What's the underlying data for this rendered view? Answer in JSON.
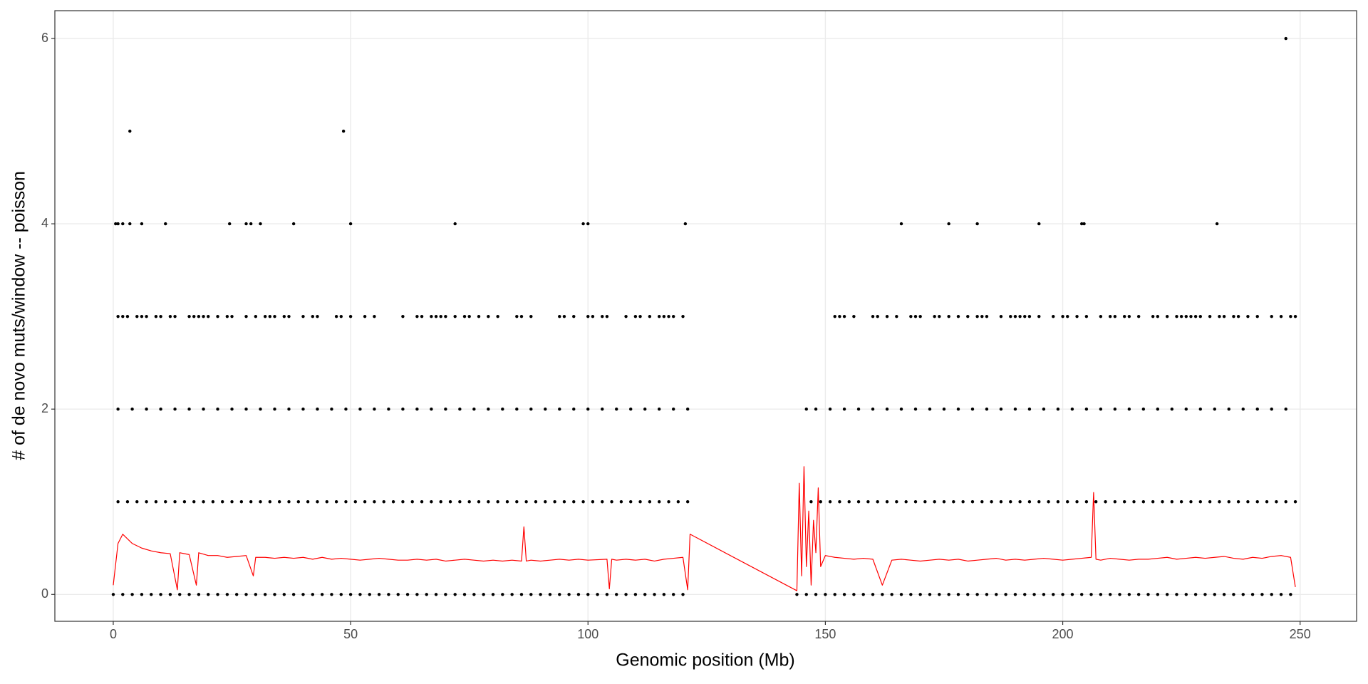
{
  "chart_data": {
    "type": "scatter",
    "xlabel": "Genomic position (Mb)",
    "ylabel": "# of de novo muts/window -- poisson",
    "xlim": [
      -12.3,
      261.9
    ],
    "ylim": [
      -0.29,
      6.3
    ],
    "xticks": [
      0,
      50,
      100,
      150,
      200,
      250
    ],
    "yticks": [
      0,
      2,
      4,
      6
    ],
    "grid": true,
    "series": [
      {
        "type": "scatter",
        "color": "#000000",
        "x": [
          0,
          2,
          4,
          6,
          8,
          10,
          12,
          14,
          16,
          18,
          20,
          22,
          24,
          26,
          28,
          30,
          32,
          34,
          36,
          38,
          40,
          42,
          44,
          46,
          48,
          50,
          52,
          54,
          56,
          58,
          60,
          62,
          64,
          66,
          68,
          70,
          72,
          74,
          76,
          78,
          80,
          82,
          84,
          86,
          88,
          90,
          92,
          94,
          96,
          98,
          100,
          102,
          104,
          106,
          108,
          110,
          112,
          114,
          116,
          118,
          120,
          144,
          146,
          148,
          150,
          152,
          154,
          156,
          158,
          160,
          162,
          164,
          166,
          168,
          170,
          172,
          174,
          176,
          178,
          180,
          182,
          184,
          186,
          188,
          190,
          192,
          194,
          196,
          198,
          200,
          202,
          204,
          206,
          208,
          210,
          212,
          214,
          216,
          218,
          220,
          222,
          224,
          226,
          228,
          230,
          232,
          234,
          236,
          238,
          240,
          242,
          244,
          246,
          248
        ],
        "values": [
          0,
          0,
          0,
          0,
          0,
          0,
          0,
          0,
          0,
          0,
          0,
          0,
          0,
          0,
          0,
          0,
          0,
          0,
          0,
          0,
          0,
          0,
          0,
          0,
          0,
          0,
          0,
          0,
          0,
          0,
          0,
          0,
          0,
          0,
          0,
          0,
          0,
          0,
          0,
          0,
          0,
          0,
          0,
          0,
          0,
          0,
          0,
          0,
          0,
          0,
          0,
          0,
          0,
          0,
          0,
          0,
          0,
          0,
          0,
          0,
          0,
          0,
          0,
          0,
          0,
          0,
          0,
          0,
          0,
          0,
          0,
          0,
          0,
          0,
          0,
          0,
          0,
          0,
          0,
          0,
          0,
          0,
          0,
          0,
          0,
          0,
          0,
          0,
          0,
          0,
          0,
          0,
          0,
          0,
          0,
          0,
          0,
          0,
          0,
          0,
          0,
          0,
          0,
          0,
          0,
          0,
          0,
          0,
          0,
          0,
          0,
          0,
          0,
          0
        ]
      },
      {
        "type": "scatter",
        "color": "#000000",
        "x": [
          1,
          3,
          5,
          7,
          9,
          11,
          13,
          15,
          17,
          19,
          21,
          23,
          25,
          27,
          29,
          31,
          33,
          35,
          37,
          39,
          41,
          43,
          45,
          47,
          49,
          51,
          53,
          55,
          57,
          59,
          61,
          63,
          65,
          67,
          69,
          71,
          73,
          75,
          77,
          79,
          81,
          83,
          85,
          87,
          89,
          91,
          93,
          95,
          97,
          99,
          101,
          103,
          105,
          107,
          109,
          111,
          113,
          115,
          117,
          119,
          121,
          147,
          149,
          151,
          153,
          155,
          157,
          159,
          161,
          163,
          165,
          167,
          169,
          171,
          173,
          175,
          177,
          179,
          181,
          183,
          185,
          187,
          189,
          191,
          193,
          195,
          197,
          199,
          201,
          203,
          205,
          207,
          209,
          211,
          213,
          215,
          217,
          219,
          221,
          223,
          225,
          227,
          229,
          231,
          233,
          235,
          237,
          239,
          241,
          243,
          245,
          247,
          249
        ],
        "values": [
          1,
          1,
          1,
          1,
          1,
          1,
          1,
          1,
          1,
          1,
          1,
          1,
          1,
          1,
          1,
          1,
          1,
          1,
          1,
          1,
          1,
          1,
          1,
          1,
          1,
          1,
          1,
          1,
          1,
          1,
          1,
          1,
          1,
          1,
          1,
          1,
          1,
          1,
          1,
          1,
          1,
          1,
          1,
          1,
          1,
          1,
          1,
          1,
          1,
          1,
          1,
          1,
          1,
          1,
          1,
          1,
          1,
          1,
          1,
          1,
          1,
          1,
          1,
          1,
          1,
          1,
          1,
          1,
          1,
          1,
          1,
          1,
          1,
          1,
          1,
          1,
          1,
          1,
          1,
          1,
          1,
          1,
          1,
          1,
          1,
          1,
          1,
          1,
          1,
          1,
          1,
          1,
          1,
          1,
          1,
          1,
          1,
          1,
          1,
          1,
          1,
          1,
          1,
          1,
          1,
          1,
          1,
          1,
          1,
          1,
          1,
          1,
          1
        ]
      },
      {
        "type": "scatter",
        "color": "#000000",
        "x": [
          1,
          4,
          7,
          10,
          13,
          16,
          19,
          22,
          25,
          28,
          31,
          34,
          37,
          40,
          43,
          46,
          49,
          52,
          55,
          58,
          61,
          64,
          67,
          70,
          73,
          76,
          79,
          82,
          85,
          88,
          91,
          94,
          97,
          100,
          103,
          106,
          109,
          112,
          115,
          118,
          121,
          146,
          148,
          151,
          154,
          157,
          160,
          163,
          166,
          169,
          172,
          175,
          178,
          181,
          184,
          187,
          190,
          193,
          196,
          199,
          202,
          205,
          208,
          211,
          214,
          217,
          220,
          223,
          226,
          229,
          232,
          235,
          238,
          241,
          244,
          247
        ],
        "values": [
          2,
          2,
          2,
          2,
          2,
          2,
          2,
          2,
          2,
          2,
          2,
          2,
          2,
          2,
          2,
          2,
          2,
          2,
          2,
          2,
          2,
          2,
          2,
          2,
          2,
          2,
          2,
          2,
          2,
          2,
          2,
          2,
          2,
          2,
          2,
          2,
          2,
          2,
          2,
          2,
          2,
          2,
          2,
          2,
          2,
          2,
          2,
          2,
          2,
          2,
          2,
          2,
          2,
          2,
          2,
          2,
          2,
          2,
          2,
          2,
          2,
          2,
          2,
          2,
          2,
          2,
          2,
          2,
          2,
          2,
          2,
          2,
          2,
          2,
          2,
          2
        ]
      },
      {
        "type": "scatter",
        "color": "#000000",
        "x": [
          1,
          2,
          3,
          5,
          6,
          7,
          9,
          10,
          12,
          13,
          16,
          17,
          18,
          19,
          20,
          22,
          24,
          25,
          28,
          30,
          32,
          33,
          34,
          36,
          37,
          40,
          42,
          43,
          47,
          48,
          50,
          53,
          55,
          61,
          64,
          65,
          67,
          68,
          69,
          70,
          72,
          74,
          75,
          77,
          79,
          81,
          85,
          86,
          88,
          94,
          95,
          97,
          100,
          101,
          103,
          104,
          108,
          110,
          111,
          113,
          115,
          116,
          117,
          118,
          120,
          152,
          153,
          154,
          156,
          160,
          161,
          163,
          165,
          168,
          169,
          170,
          173,
          174,
          176,
          178,
          180,
          182,
          183,
          184,
          187,
          189,
          190,
          191,
          192,
          193,
          195,
          198,
          200,
          201,
          203,
          205,
          208,
          210,
          211,
          213,
          214,
          216,
          219,
          220,
          222,
          224,
          225,
          226,
          227,
          228,
          229,
          231,
          233,
          234,
          236,
          237,
          239,
          241,
          244,
          246,
          248,
          249
        ],
        "values": [
          3,
          3,
          3,
          3,
          3,
          3,
          3,
          3,
          3,
          3,
          3,
          3,
          3,
          3,
          3,
          3,
          3,
          3,
          3,
          3,
          3,
          3,
          3,
          3,
          3,
          3,
          3,
          3,
          3,
          3,
          3,
          3,
          3,
          3,
          3,
          3,
          3,
          3,
          3,
          3,
          3,
          3,
          3,
          3,
          3,
          3,
          3,
          3,
          3,
          3,
          3,
          3,
          3,
          3,
          3,
          3,
          3,
          3,
          3,
          3,
          3,
          3,
          3,
          3,
          3,
          3,
          3,
          3,
          3,
          3,
          3,
          3,
          3,
          3,
          3,
          3,
          3,
          3,
          3,
          3,
          3,
          3,
          3,
          3,
          3,
          3,
          3,
          3,
          3,
          3,
          3,
          3,
          3,
          3,
          3,
          3,
          3,
          3,
          3,
          3,
          3,
          3,
          3,
          3,
          3,
          3,
          3,
          3,
          3,
          3,
          3,
          3,
          3,
          3,
          3,
          3,
          3,
          3,
          3,
          3,
          3,
          3
        ]
      },
      {
        "type": "scatter",
        "color": "#000000",
        "x": [
          0.5,
          1,
          2,
          3.5,
          6,
          11,
          24.5,
          28,
          29,
          31,
          38,
          50,
          72,
          99,
          100,
          120.5,
          166,
          176,
          182,
          195,
          204,
          204.5,
          232.5
        ],
        "values": [
          4,
          4,
          4,
          4,
          4,
          4,
          4,
          4,
          4,
          4,
          4,
          4,
          4,
          4,
          4,
          4,
          4,
          4,
          4,
          4,
          4,
          4,
          4
        ]
      },
      {
        "type": "scatter",
        "color": "#000000",
        "x": [
          3.5,
          48.5
        ],
        "values": [
          5,
          5
        ]
      },
      {
        "type": "scatter",
        "color": "#000000",
        "x": [
          247
        ],
        "values": [
          6
        ]
      },
      {
        "type": "line",
        "color": "#ff0000",
        "x": [
          0,
          1,
          2,
          4,
          6,
          8,
          10,
          12,
          13.5,
          14,
          16,
          17.5,
          18,
          20,
          22,
          24,
          26,
          28,
          29.5,
          30,
          32,
          34,
          36,
          38,
          40,
          42,
          44,
          46,
          48,
          50,
          52,
          54,
          56,
          58,
          60,
          62,
          64,
          66,
          68,
          70,
          72,
          74,
          76,
          78,
          80,
          82,
          84,
          86,
          86.5,
          87,
          88,
          90,
          92,
          94,
          96,
          98,
          100,
          104,
          104.5,
          105,
          106,
          108,
          110,
          112,
          114,
          116,
          118,
          120,
          121,
          121.5,
          144,
          144.5,
          145,
          145.5,
          146,
          146.5,
          147,
          147.5,
          148,
          148.5,
          149,
          150,
          152,
          154,
          156,
          158,
          160,
          162,
          164,
          166,
          168,
          170,
          172,
          174,
          176,
          178,
          180,
          182,
          184,
          186,
          188,
          190,
          192,
          194,
          196,
          198,
          200,
          202,
          204,
          206,
          206.5,
          207,
          208,
          210,
          212,
          214,
          216,
          218,
          220,
          222,
          224,
          226,
          228,
          230,
          232,
          234,
          236,
          238,
          240,
          242,
          244,
          246,
          248,
          249
        ],
        "values": [
          0.1,
          0.55,
          0.65,
          0.55,
          0.5,
          0.47,
          0.45,
          0.44,
          0.05,
          0.45,
          0.43,
          0.1,
          0.45,
          0.42,
          0.42,
          0.4,
          0.41,
          0.42,
          0.2,
          0.4,
          0.4,
          0.39,
          0.4,
          0.39,
          0.4,
          0.38,
          0.4,
          0.38,
          0.39,
          0.38,
          0.37,
          0.38,
          0.39,
          0.38,
          0.37,
          0.37,
          0.38,
          0.37,
          0.38,
          0.36,
          0.37,
          0.38,
          0.37,
          0.36,
          0.37,
          0.36,
          0.37,
          0.36,
          0.73,
          0.36,
          0.37,
          0.36,
          0.37,
          0.38,
          0.37,
          0.38,
          0.37,
          0.38,
          0.06,
          0.38,
          0.37,
          0.38,
          0.37,
          0.38,
          0.36,
          0.38,
          0.39,
          0.4,
          0.05,
          0.65,
          0.04,
          1.2,
          0.2,
          1.38,
          0.3,
          0.9,
          0.1,
          0.8,
          0.45,
          1.15,
          0.3,
          0.42,
          0.4,
          0.39,
          0.38,
          0.39,
          0.38,
          0.1,
          0.37,
          0.38,
          0.37,
          0.36,
          0.37,
          0.38,
          0.37,
          0.38,
          0.36,
          0.37,
          0.38,
          0.39,
          0.37,
          0.38,
          0.37,
          0.38,
          0.39,
          0.38,
          0.37,
          0.38,
          0.39,
          0.4,
          1.1,
          0.38,
          0.37,
          0.39,
          0.38,
          0.37,
          0.38,
          0.38,
          0.39,
          0.4,
          0.38,
          0.39,
          0.4,
          0.39,
          0.4,
          0.41,
          0.39,
          0.38,
          0.4,
          0.39,
          0.41,
          0.42,
          0.4,
          0.08
        ]
      }
    ]
  }
}
